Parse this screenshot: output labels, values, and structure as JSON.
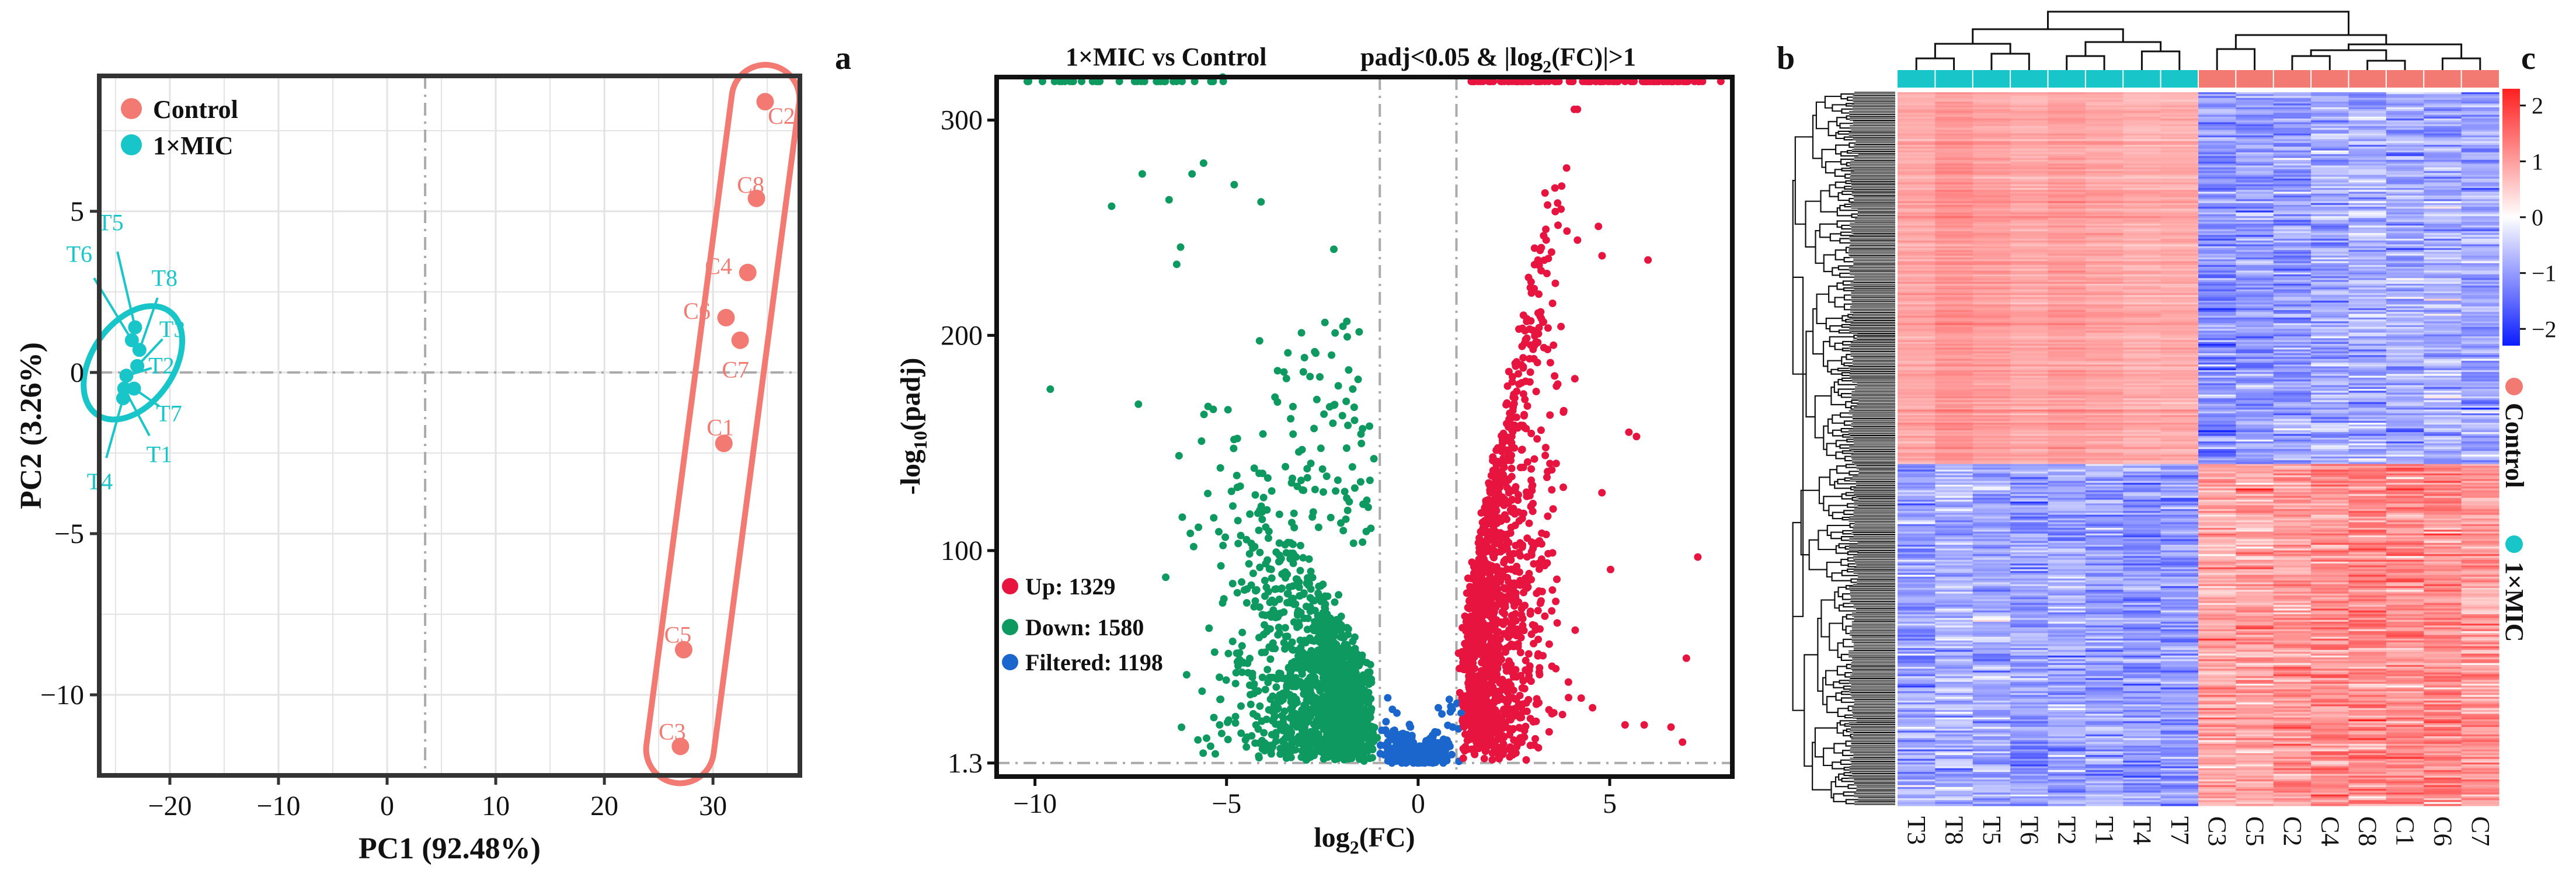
{
  "chart_data": [
    {
      "id": "pca",
      "type": "scatter",
      "xlabel": "PC1 (92.48%)",
      "ylabel": "PC2 (3.26%)",
      "xlim": [
        -26.5,
        38
      ],
      "ylim": [
        -12.5,
        9.2
      ],
      "xticks": [
        -20,
        -10,
        0,
        10,
        20,
        30
      ],
      "yticks": [
        5,
        0,
        -5,
        -10
      ],
      "ytick_labels": [
        "5",
        "0",
        "−5",
        "−10"
      ],
      "xtick_labels": [
        "−20",
        "−10",
        "0",
        "10",
        "20",
        "30"
      ],
      "ref_lines": {
        "x": 3.5,
        "y": 0
      },
      "grid": true,
      "legend": {
        "position": "top-left",
        "entries": [
          {
            "name": "Control",
            "color": "#f27a72"
          },
          {
            "name": "1×MIC",
            "color": "#18c5c8"
          }
        ]
      },
      "series": [
        {
          "name": "Control",
          "color": "#f27a72",
          "points": [
            {
              "label": "C2",
              "x": 34.8,
              "y": 8.4
            },
            {
              "label": "C8",
              "x": 34.0,
              "y": 5.4
            },
            {
              "label": "C4",
              "x": 33.2,
              "y": 3.1
            },
            {
              "label": "C6",
              "x": 31.2,
              "y": 1.7
            },
            {
              "label": "C7",
              "x": 32.5,
              "y": 1.0
            },
            {
              "label": "C1",
              "x": 31.0,
              "y": -2.2
            },
            {
              "label": "C5",
              "x": 27.3,
              "y": -8.6
            },
            {
              "label": "C3",
              "x": 27.0,
              "y": -11.6
            }
          ]
        },
        {
          "name": "1×MIC",
          "color": "#18c5c8",
          "points": [
            {
              "label": "T5",
              "x": -23.2,
              "y": 1.4
            },
            {
              "label": "T6",
              "x": -23.5,
              "y": 1.0
            },
            {
              "label": "T8",
              "x": -22.8,
              "y": 0.7
            },
            {
              "label": "T3",
              "x": -23.0,
              "y": 0.2
            },
            {
              "label": "T2",
              "x": -24.0,
              "y": -0.1
            },
            {
              "label": "T7",
              "x": -23.3,
              "y": -0.5
            },
            {
              "label": "T1",
              "x": -24.2,
              "y": -0.5
            },
            {
              "label": "T4",
              "x": -24.3,
              "y": -0.8
            }
          ]
        }
      ]
    },
    {
      "id": "volcano",
      "type": "scatter",
      "panel_label": "a",
      "title_left": "1×MIC vs  Control",
      "title_right": "padj<0.05 & |log2(FC)|>1",
      "xlabel": "log2(FC)",
      "ylabel": "-log10(padj)",
      "xlim": [
        -11,
        8.2
      ],
      "ylim": [
        -5,
        320
      ],
      "xticks": [
        -10,
        -5,
        0,
        5
      ],
      "xtick_labels": [
        "−10",
        "−5",
        "0",
        "5"
      ],
      "yticks": [
        1.3,
        100,
        200,
        300
      ],
      "ytick_labels": [
        "1.3",
        "100",
        "200",
        "300"
      ],
      "thresholds": {
        "log2fc": [
          -1,
          1
        ],
        "neglog10padj": 1.3
      },
      "legend": {
        "position": "bottom-left",
        "entries": [
          {
            "name": "Up: 1329",
            "category": "Up",
            "count": 1329,
            "color": "#e6143f"
          },
          {
            "name": "Down: 1580",
            "category": "Down",
            "count": 1580,
            "color": "#0e9960"
          },
          {
            "name": "Filtered: 1198",
            "category": "Filtered",
            "count": 1198,
            "color": "#1a66cc"
          }
        ]
      },
      "example_points": {
        "down": [
          [
            -10.2,
            318
          ],
          [
            -9.0,
            318
          ],
          [
            -8.4,
            318
          ],
          [
            -7.4,
            318
          ],
          [
            -6.6,
            318
          ],
          [
            -5.1,
            320
          ],
          [
            -8.0,
            260
          ],
          [
            -7.2,
            275
          ],
          [
            -6.5,
            263
          ],
          [
            -5.9,
            275
          ],
          [
            -5.6,
            280
          ],
          [
            -4.1,
            262
          ],
          [
            -4.8,
            270
          ],
          [
            -6.3,
            233
          ],
          [
            -6.2,
            241
          ],
          [
            -7.3,
            168
          ],
          [
            -9.6,
            175
          ],
          [
            -2.2,
            240
          ]
        ],
        "up": [
          [
            6.0,
            235
          ],
          [
            7.3,
            97
          ],
          [
            5.7,
            153
          ],
          [
            4.8,
            237
          ],
          [
            3.8,
            165
          ],
          [
            5.5,
            155
          ],
          [
            4.1,
            63
          ],
          [
            5.4,
            19
          ],
          [
            6.6,
            18
          ],
          [
            7.0,
            50
          ],
          [
            5.9,
            19
          ],
          [
            6.9,
            11
          ],
          [
            2.6,
            318
          ],
          [
            4.0,
            318
          ],
          [
            6.5,
            318
          ],
          [
            7.9,
            318
          ]
        ]
      },
      "cloud_summary": {
        "down_points_drawn": 1500,
        "up_points_drawn": 1300,
        "filtered_points_drawn": 260
      }
    },
    {
      "id": "heatmap",
      "type": "heatmap",
      "panel_label_left": "b",
      "panel_label_right": "c",
      "columns": [
        "T3",
        "T8",
        "T5",
        "T6",
        "T2",
        "T1",
        "T4",
        "T7",
        "C3",
        "C5",
        "C2",
        "C4",
        "C8",
        "C1",
        "C6",
        "C7"
      ],
      "column_groups": [
        {
          "name": "1×MIC",
          "color": "#18c5c8",
          "count": 8
        },
        {
          "name": "Control",
          "color": "#f27a72",
          "count": 8
        }
      ],
      "row_clusters": [
        {
          "name": "cluster-1",
          "fraction": 0.52,
          "value_1xMIC": 0.9,
          "value_Control": -0.9
        },
        {
          "name": "cluster-2",
          "fraction": 0.48,
          "value_1xMIC": -0.9,
          "value_Control": 1.0
        }
      ],
      "colorbar": {
        "min": -2.3,
        "max": 2.3,
        "ticks": [
          2,
          1,
          0,
          -1,
          -2
        ],
        "tick_labels": [
          "2",
          "1",
          "0",
          "−1",
          "−2"
        ],
        "low_color": "#0b1cff",
        "mid_color": "#ffffff",
        "high_color": "#ff1f1f"
      },
      "group_legend": [
        {
          "name": "Control",
          "color": "#f27a72"
        },
        {
          "name": "1×MIC",
          "color": "#18c5c8"
        }
      ]
    }
  ]
}
